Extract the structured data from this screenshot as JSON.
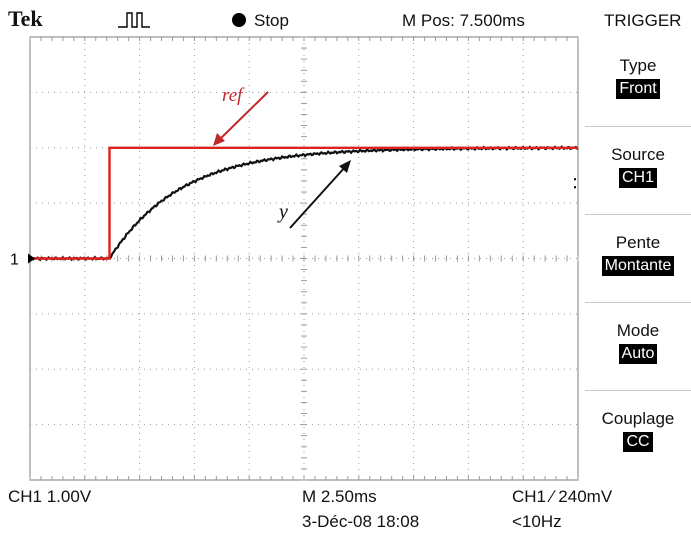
{
  "header": {
    "brand": "Tek",
    "run_icon": "pulse-waveform-icon",
    "status": "Stop",
    "mpos": "M Pos: 7.500ms",
    "menu_title": "TRIGGER"
  },
  "menu": [
    {
      "label": "Type",
      "value": "Front"
    },
    {
      "label": "Source",
      "value": "CH1"
    },
    {
      "label": "Pente",
      "value": "Montante"
    },
    {
      "label": "Mode",
      "value": "Auto"
    },
    {
      "label": "Couplage",
      "value": "CC"
    }
  ],
  "footer": {
    "ch1_scale": "CH1  1.00V",
    "timebase": "M 2.50ms",
    "date": "3-Déc-08 18:08",
    "trigger_info": "CH1 ∕ 240mV",
    "freq": "<10Hz"
  },
  "waveform": {
    "channel_marker": "1",
    "annotations": {
      "ref": "ref",
      "y": "y"
    },
    "colors": {
      "ref": "#e0201b",
      "y": "#111111",
      "grid": "#9a9a9a",
      "annotation": "#c0262a"
    },
    "x_divisions": 10,
    "y_divisions": 8,
    "step_time_div": 1.45,
    "baseline_div": -0.0,
    "ref_level_div": 2.0,
    "final_y_div": 2.0,
    "time_constant_div": 1.3
  },
  "chart_data": {
    "type": "line",
    "title": "",
    "xlabel": "",
    "ylabel": "",
    "xlim": [
      0,
      10
    ],
    "ylim": [
      -4,
      4
    ],
    "grid": true,
    "series": [
      {
        "name": "ref",
        "x": [
          0,
          1.45,
          1.45,
          10
        ],
        "y": [
          0,
          0,
          2.0,
          2.0
        ]
      },
      {
        "name": "y",
        "x": [
          0,
          1.45,
          2.0,
          2.5,
          3.0,
          3.5,
          4.0,
          5.0,
          6.0,
          7.0,
          8.0,
          9.0,
          10.0
        ],
        "y": [
          0,
          0,
          0.69,
          1.07,
          1.32,
          1.5,
          1.64,
          1.82,
          1.91,
          1.96,
          1.98,
          1.99,
          2.0
        ]
      }
    ]
  }
}
